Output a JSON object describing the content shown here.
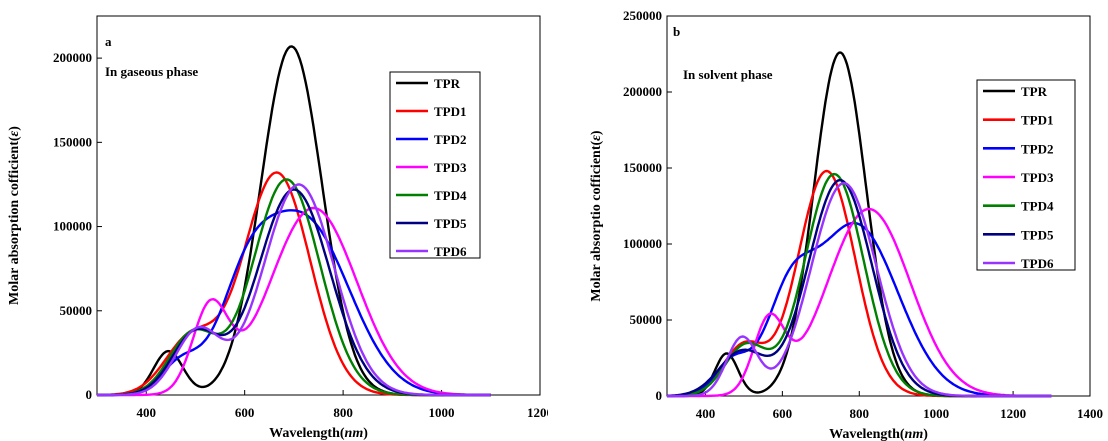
{
  "chart_data": [
    {
      "type": "line",
      "panel_label": "a",
      "annotation": "In gaseous phase",
      "xlabel": "Wavelength(nm)",
      "xlabel_main": "Wavelength(",
      "xlabel_unit": "nm",
      "xlabel_close": ")",
      "ylabel": "Molar absorption cofficient(ε)",
      "ylabel_main": "Molar absorption cofficient(",
      "ylabel_unit": "ε",
      "ylabel_close": ")",
      "xlim": [
        300,
        1200
      ],
      "ylim": [
        0,
        225000
      ],
      "xticks": [
        400,
        600,
        800,
        1000,
        1200
      ],
      "yticks": [
        0,
        50000,
        100000,
        150000,
        200000
      ],
      "xtick_labels": [
        "400",
        "600",
        "800",
        "1000",
        "1200"
      ],
      "ytick_labels": [
        "0",
        "50000",
        "100000",
        "150000",
        "200000"
      ],
      "x_range_plotted": [
        300,
        1100
      ],
      "legend_position": "right",
      "series": [
        {
          "name": "TPR",
          "color": "#000000",
          "peaks": [
            [
              445,
              26000,
              30
            ],
            [
              695,
              207000,
              62
            ]
          ]
        },
        {
          "name": "TPD1",
          "color": "#ff0000",
          "peaks": [
            [
              490,
              33000,
              52
            ],
            [
              665,
              132000,
              68
            ]
          ]
        },
        {
          "name": "TPD2",
          "color": "#0000ff",
          "peaks": [
            [
              470,
              18000,
              40
            ],
            [
              600,
              42000,
              55
            ],
            [
              720,
              104000,
              92
            ]
          ]
        },
        {
          "name": "TPD3",
          "color": "#ff00ff",
          "peaks": [
            [
              530,
              50000,
              36
            ],
            [
              740,
              111000,
              88
            ]
          ]
        },
        {
          "name": "TPD4",
          "color": "#008000",
          "peaks": [
            [
              495,
              36000,
              48
            ],
            [
              685,
              128000,
              68
            ]
          ]
        },
        {
          "name": "TPD5",
          "color": "#000080",
          "peaks": [
            [
              500,
              36000,
              48
            ],
            [
              700,
              122000,
              73
            ]
          ]
        },
        {
          "name": "TPD6",
          "color": "#9933ff",
          "peaks": [
            [
              505,
              38000,
              46
            ],
            [
              710,
              125000,
              72
            ]
          ]
        }
      ]
    },
    {
      "type": "line",
      "panel_label": "b",
      "annotation": "In solvent phase",
      "xlabel": "Wavelength(nm)",
      "xlabel_main": "Wavelength(",
      "xlabel_unit": "nm",
      "xlabel_close": ")",
      "ylabel": "Molar absorptio cofficient(ε)",
      "ylabel_main": "Molar absorptio cofficient(",
      "ylabel_unit": "ε",
      "ylabel_close": ")",
      "xlim": [
        300,
        1400
      ],
      "ylim": [
        0,
        250000
      ],
      "xticks": [
        400,
        600,
        800,
        1000,
        1200,
        1400
      ],
      "yticks": [
        0,
        50000,
        100000,
        150000,
        200000,
        250000
      ],
      "xtick_labels": [
        "400",
        "600",
        "800",
        "1000",
        "1200",
        "1400"
      ],
      "ytick_labels": [
        "0",
        "50000",
        "100000",
        "150000",
        "200000",
        "250000"
      ],
      "x_range_plotted": [
        300,
        1300
      ],
      "legend_position": "right",
      "series": [
        {
          "name": "TPR",
          "color": "#000000",
          "peaks": [
            [
              455,
              28000,
              30
            ],
            [
              750,
              226000,
              68
            ]
          ]
        },
        {
          "name": "TPD1",
          "color": "#ff0000",
          "peaks": [
            [
              500,
              33000,
              55
            ],
            [
              715,
              148000,
              75
            ]
          ]
        },
        {
          "name": "TPD2",
          "color": "#0000ff",
          "peaks": [
            [
              470,
              22000,
              45
            ],
            [
              615,
              50000,
              60
            ],
            [
              790,
              113000,
              110
            ]
          ]
        },
        {
          "name": "TPD3",
          "color": "#ff00ff",
          "peaks": [
            [
              565,
              47000,
              40
            ],
            [
              825,
              123000,
              108
            ]
          ]
        },
        {
          "name": "TPD4",
          "color": "#008000",
          "peaks": [
            [
              505,
              33000,
              55
            ],
            [
              735,
              146000,
              77
            ]
          ]
        },
        {
          "name": "TPD5",
          "color": "#000080",
          "peaks": [
            [
              495,
              29000,
              60
            ],
            [
              750,
              142000,
              83
            ]
          ]
        },
        {
          "name": "TPD6",
          "color": "#9933ff",
          "peaks": [
            [
              495,
              38000,
              40
            ],
            [
              760,
              140000,
              85
            ]
          ]
        }
      ]
    }
  ]
}
